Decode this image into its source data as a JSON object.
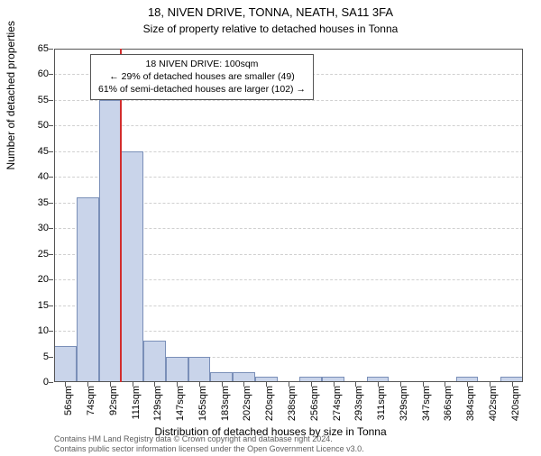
{
  "chart": {
    "type": "histogram",
    "title": "18, NIVEN DRIVE, TONNA, NEATH, SA11 3FA",
    "subtitle": "Size of property relative to detached houses in Tonna",
    "x_axis_title": "Distribution of detached houses by size in Tonna",
    "y_axis_title": "Number of detached properties",
    "background_color": "#ffffff",
    "grid_color": "#d0d0d0",
    "axis_color": "#555555",
    "bar_fill": "#c9d4ea",
    "bar_stroke": "#7a8fb8",
    "bar_width_ratio": 1.0,
    "ylim": [
      0,
      65
    ],
    "ytick_step": 5,
    "x_categories": [
      "56sqm",
      "74sqm",
      "92sqm",
      "111sqm",
      "129sqm",
      "147sqm",
      "165sqm",
      "183sqm",
      "202sqm",
      "220sqm",
      "238sqm",
      "256sqm",
      "274sqm",
      "293sqm",
      "311sqm",
      "329sqm",
      "347sqm",
      "366sqm",
      "384sqm",
      "402sqm",
      "420sqm"
    ],
    "values": [
      7,
      36,
      55,
      45,
      8,
      5,
      5,
      2,
      2,
      1,
      0,
      1,
      1,
      0,
      1,
      0,
      0,
      0,
      1,
      0,
      1
    ],
    "marker": {
      "label": "18 NIVEN DRIVE: 100sqm",
      "position_index": 2.44,
      "color": "#d22d2d"
    },
    "annotation": {
      "lines": [
        "18 NIVEN DRIVE: 100sqm",
        "← 29% of detached houses are smaller (49)",
        "61% of semi-detached houses are larger (102) →"
      ],
      "border_color": "#555555"
    },
    "attribution": [
      "Contains HM Land Registry data © Crown copyright and database right 2024.",
      "Contains public sector information licensed under the Open Government Licence v3.0."
    ],
    "title_fontsize": 13,
    "label_fontsize": 11
  }
}
